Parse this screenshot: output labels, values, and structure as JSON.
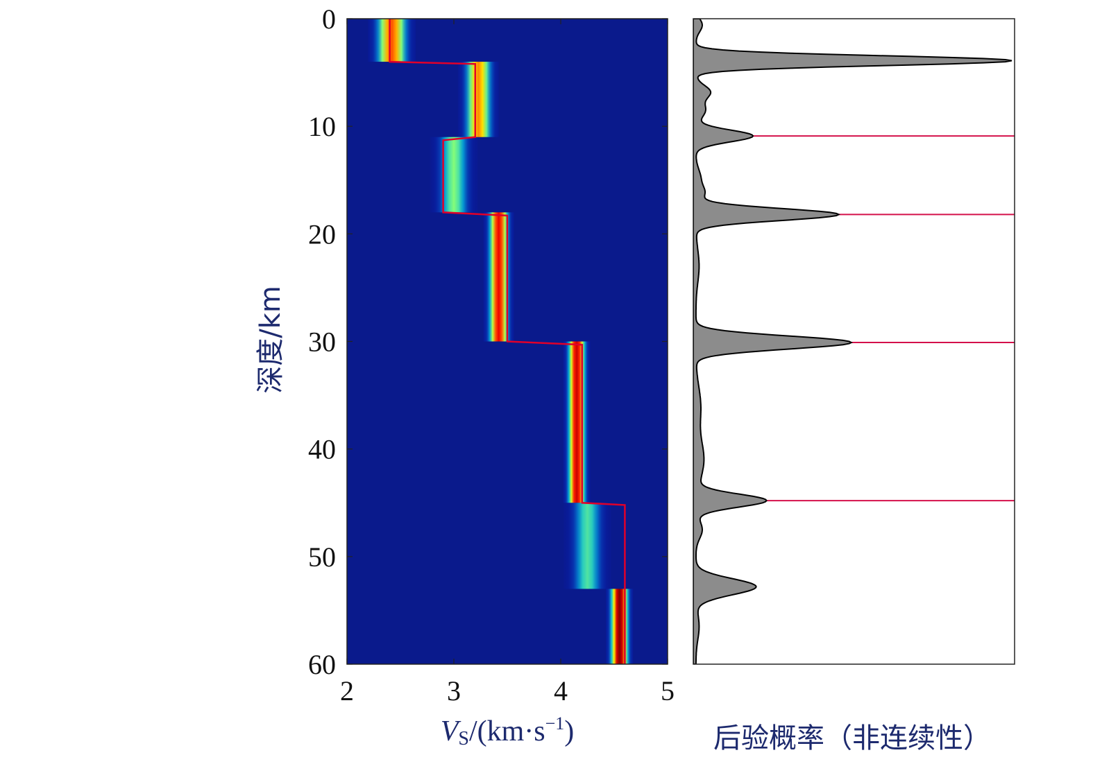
{
  "chart_data": [
    {
      "type": "heatmap",
      "xlabel": {
        "italic": "V",
        "sub": "S",
        "rest": "/(km·s",
        "sup": "−1",
        "close": ")"
      },
      "ylabel": "深度/km",
      "xlim": [
        2,
        5
      ],
      "ylim": [
        0,
        60
      ],
      "y_inverted": true,
      "xticks": [
        "2",
        "3",
        "4",
        "5"
      ],
      "yticks": [
        "0",
        "10",
        "20",
        "30",
        "40",
        "50",
        "60"
      ],
      "colormap": [
        "#00008f",
        "#0000ff",
        "#00ffff",
        "#ffff00",
        "#ff0000",
        "#800000"
      ],
      "background_color": "#0a1a8c",
      "series": [
        {
          "kind": "density-band",
          "segments": [
            {
              "depth_top": 0,
              "depth_bottom": 4,
              "vs_center": 2.42,
              "width": 0.14,
              "peak": 0.75
            },
            {
              "depth_top": 4,
              "depth_bottom": 11,
              "vs_center": 3.23,
              "width": 0.12,
              "peak": 0.7
            },
            {
              "depth_top": 11,
              "depth_bottom": 18,
              "vs_center": 3.0,
              "width": 0.14,
              "peak": 0.45
            },
            {
              "depth_top": 18,
              "depth_bottom": 30,
              "vs_center": 3.42,
              "width": 0.09,
              "peak": 0.85
            },
            {
              "depth_top": 30,
              "depth_bottom": 45,
              "vs_center": 4.15,
              "width": 0.08,
              "peak": 0.9
            },
            {
              "depth_top": 45,
              "depth_bottom": 53,
              "vs_center": 4.25,
              "width": 0.14,
              "peak": 0.4
            },
            {
              "depth_top": 53,
              "depth_bottom": 60,
              "vs_center": 4.55,
              "width": 0.08,
              "peak": 1.0
            }
          ]
        },
        {
          "kind": "best-model-line",
          "color": "#e0002a",
          "points": [
            [
              2.4,
              0
            ],
            [
              2.4,
              4
            ],
            [
              3.2,
              4.2
            ],
            [
              3.2,
              11
            ],
            [
              2.9,
              11.3
            ],
            [
              2.9,
              18
            ],
            [
              3.5,
              18.3
            ],
            [
              3.5,
              30
            ],
            [
              4.2,
              30.3
            ],
            [
              4.2,
              45
            ],
            [
              4.6,
              45.2
            ],
            [
              4.6,
              60
            ]
          ]
        }
      ]
    },
    {
      "type": "area",
      "xlabel": "后验概率（非连续性）",
      "ylim": [
        0,
        60
      ],
      "y_inverted": true,
      "fill_color": "#8c8c8c",
      "line_color": "#000000",
      "series": [
        {
          "name": "",
          "peaks": [
            {
              "depth": 0.6,
              "value": 0.02,
              "width": 0.6
            },
            {
              "depth": 3.9,
              "value": 1.0,
              "width": 0.45
            },
            {
              "depth": 6.8,
              "value": 0.045,
              "width": 0.6
            },
            {
              "depth": 8.5,
              "value": 0.03,
              "width": 0.7
            },
            {
              "depth": 10.9,
              "value": 0.18,
              "width": 0.55
            },
            {
              "depth": 14.8,
              "value": 0.015,
              "width": 0.8
            },
            {
              "depth": 16.2,
              "value": 0.025,
              "width": 0.6
            },
            {
              "depth": 18.2,
              "value": 0.45,
              "width": 0.55
            },
            {
              "depth": 23.0,
              "value": 0.01,
              "width": 1.5
            },
            {
              "depth": 30.1,
              "value": 0.49,
              "width": 0.6
            },
            {
              "depth": 36.0,
              "value": 0.015,
              "width": 1.8
            },
            {
              "depth": 41.0,
              "value": 0.025,
              "width": 1.8
            },
            {
              "depth": 44.8,
              "value": 0.22,
              "width": 0.6
            },
            {
              "depth": 47.5,
              "value": 0.02,
              "width": 0.8
            },
            {
              "depth": 52.8,
              "value": 0.19,
              "width": 0.75
            },
            {
              "depth": 56.5,
              "value": 0.01,
              "width": 1.2
            }
          ]
        }
      ],
      "interfaces": {
        "color": "#d4104a",
        "depths": [
          10.9,
          18.2,
          30.1,
          44.8
        ]
      }
    }
  ]
}
